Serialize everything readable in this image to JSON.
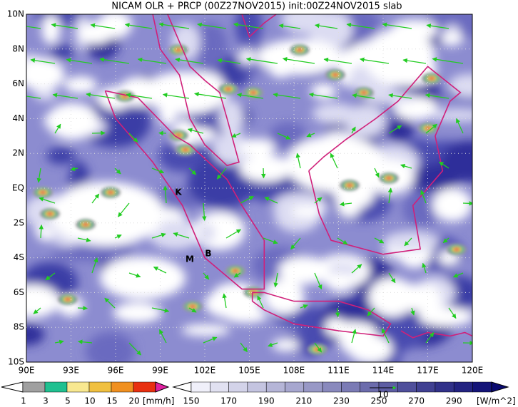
{
  "title": "NICAM OLR + PRCP (00Z27NOV2015) init:00Z24NOV2015 slab",
  "map": {
    "x_labels": [
      "90E",
      "93E",
      "96E",
      "99E",
      "102E",
      "105E",
      "108E",
      "111E",
      "114E",
      "117E",
      "120E"
    ],
    "y_labels": [
      "10N",
      "8N",
      "6N",
      "4N",
      "2N",
      "EQ",
      "2S",
      "4S",
      "6S",
      "8S",
      "10S"
    ],
    "place_labels": [
      "K",
      "M",
      "B"
    ]
  },
  "legend": {
    "precip": {
      "labels": [
        "1",
        "3",
        "5",
        "10",
        "15",
        "20"
      ],
      "unit": "[mm/h]"
    },
    "olr": {
      "labels": [
        "150",
        "170",
        "190",
        "210",
        "230",
        "250",
        "270",
        "290"
      ],
      "unit": "[W/m^2]",
      "reference_vector": "10"
    }
  }
}
